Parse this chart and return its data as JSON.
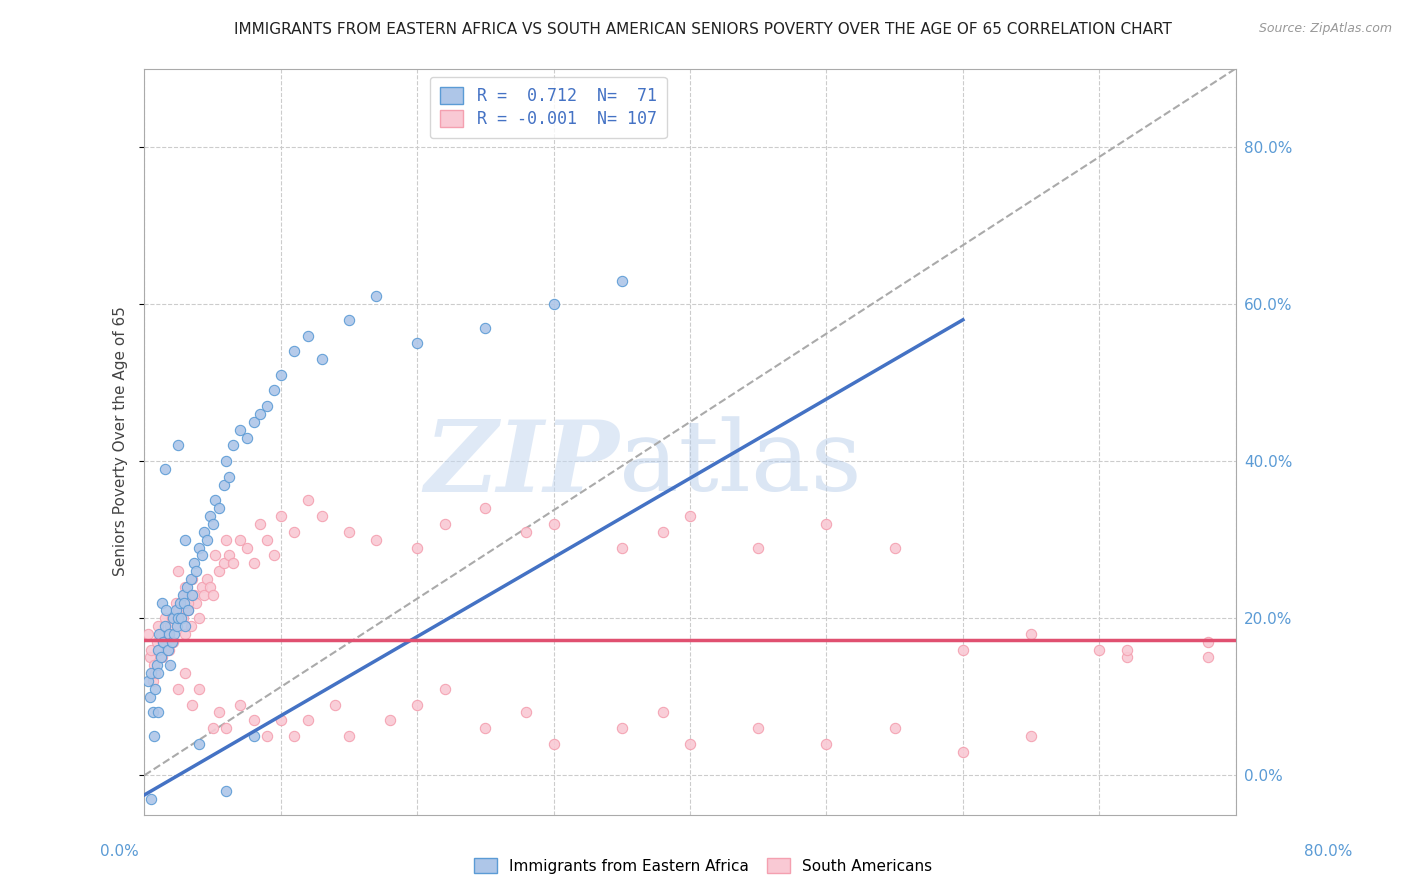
{
  "title": "IMMIGRANTS FROM EASTERN AFRICA VS SOUTH AMERICAN SENIORS POVERTY OVER THE AGE OF 65 CORRELATION CHART",
  "source": "Source: ZipAtlas.com",
  "ylabel": "Seniors Poverty Over the Age of 65",
  "ylabel_right_vals": [
    0.8,
    0.6,
    0.4,
    0.2,
    0.0
  ],
  "xlim": [
    0.0,
    0.8
  ],
  "ylim": [
    -0.05,
    0.9
  ],
  "background_color": "#ffffff",
  "grid_color": "#cccccc",
  "watermark_zip": "ZIP",
  "watermark_atlas": "atlas",
  "blue_color": "#5b9bd5",
  "blue_fill": "#aec6e8",
  "pink_color": "#f4a0b0",
  "pink_fill": "#f9c9d4",
  "trend_blue_color": "#4472c4",
  "trend_pink_color": "#e05070",
  "trend_dashed_color": "#aaaaaa",
  "blue_trend_x0": 0.0,
  "blue_trend_y0": -0.025,
  "blue_trend_x1": 0.6,
  "blue_trend_y1": 0.58,
  "pink_trend_x0": 0.0,
  "pink_trend_x1": 0.8,
  "pink_trend_y0": 0.172,
  "pink_trend_y1": 0.172,
  "dashed_trend_x0": 0.0,
  "dashed_trend_x1": 0.8,
  "dashed_trend_y0": 0.0,
  "dashed_trend_y1": 0.9,
  "blue_points_x": [
    0.003,
    0.004,
    0.005,
    0.006,
    0.007,
    0.008,
    0.009,
    0.01,
    0.01,
    0.011,
    0.012,
    0.013,
    0.014,
    0.015,
    0.016,
    0.017,
    0.018,
    0.019,
    0.02,
    0.021,
    0.022,
    0.023,
    0.024,
    0.025,
    0.026,
    0.027,
    0.028,
    0.029,
    0.03,
    0.031,
    0.032,
    0.034,
    0.035,
    0.036,
    0.038,
    0.04,
    0.042,
    0.044,
    0.046,
    0.048,
    0.05,
    0.052,
    0.055,
    0.058,
    0.06,
    0.062,
    0.065,
    0.07,
    0.075,
    0.08,
    0.085,
    0.09,
    0.095,
    0.1,
    0.11,
    0.12,
    0.13,
    0.15,
    0.17,
    0.2,
    0.25,
    0.3,
    0.35,
    0.04,
    0.06,
    0.08,
    0.03,
    0.025,
    0.015,
    0.01,
    0.005
  ],
  "blue_points_y": [
    0.12,
    0.1,
    0.13,
    0.08,
    0.05,
    0.11,
    0.14,
    0.16,
    0.13,
    0.18,
    0.15,
    0.22,
    0.17,
    0.19,
    0.21,
    0.16,
    0.18,
    0.14,
    0.17,
    0.2,
    0.18,
    0.21,
    0.19,
    0.2,
    0.22,
    0.2,
    0.23,
    0.22,
    0.19,
    0.24,
    0.21,
    0.25,
    0.23,
    0.27,
    0.26,
    0.29,
    0.28,
    0.31,
    0.3,
    0.33,
    0.32,
    0.35,
    0.34,
    0.37,
    0.4,
    0.38,
    0.42,
    0.44,
    0.43,
    0.45,
    0.46,
    0.47,
    0.49,
    0.51,
    0.54,
    0.56,
    0.53,
    0.58,
    0.61,
    0.55,
    0.57,
    0.6,
    0.63,
    0.04,
    -0.02,
    0.05,
    0.3,
    0.42,
    0.39,
    0.08,
    -0.03
  ],
  "pink_points_x": [
    0.003,
    0.004,
    0.005,
    0.006,
    0.007,
    0.008,
    0.009,
    0.01,
    0.011,
    0.012,
    0.013,
    0.014,
    0.015,
    0.016,
    0.017,
    0.018,
    0.019,
    0.02,
    0.021,
    0.022,
    0.023,
    0.024,
    0.025,
    0.026,
    0.027,
    0.028,
    0.029,
    0.03,
    0.031,
    0.032,
    0.034,
    0.035,
    0.036,
    0.038,
    0.04,
    0.042,
    0.044,
    0.046,
    0.048,
    0.05,
    0.052,
    0.055,
    0.058,
    0.06,
    0.062,
    0.065,
    0.07,
    0.075,
    0.08,
    0.085,
    0.09,
    0.095,
    0.1,
    0.11,
    0.12,
    0.13,
    0.15,
    0.17,
    0.2,
    0.22,
    0.25,
    0.28,
    0.3,
    0.35,
    0.38,
    0.4,
    0.45,
    0.5,
    0.55,
    0.6,
    0.65,
    0.7,
    0.72,
    0.78,
    0.025,
    0.03,
    0.035,
    0.04,
    0.05,
    0.055,
    0.06,
    0.07,
    0.08,
    0.09,
    0.1,
    0.11,
    0.12,
    0.14,
    0.15,
    0.18,
    0.2,
    0.22,
    0.25,
    0.28,
    0.3,
    0.35,
    0.38,
    0.4,
    0.45,
    0.5,
    0.55,
    0.6,
    0.65,
    0.72,
    0.78,
    0.025,
    0.03,
    0.032
  ],
  "pink_points_y": [
    0.18,
    0.15,
    0.16,
    0.12,
    0.14,
    0.13,
    0.17,
    0.19,
    0.16,
    0.18,
    0.15,
    0.17,
    0.2,
    0.16,
    0.18,
    0.16,
    0.19,
    0.2,
    0.17,
    0.19,
    0.22,
    0.2,
    0.21,
    0.2,
    0.22,
    0.2,
    0.23,
    0.18,
    0.22,
    0.21,
    0.19,
    0.25,
    0.23,
    0.22,
    0.2,
    0.24,
    0.23,
    0.25,
    0.24,
    0.23,
    0.28,
    0.26,
    0.27,
    0.3,
    0.28,
    0.27,
    0.3,
    0.29,
    0.27,
    0.32,
    0.3,
    0.28,
    0.33,
    0.31,
    0.35,
    0.33,
    0.31,
    0.3,
    0.29,
    0.32,
    0.34,
    0.31,
    0.32,
    0.29,
    0.31,
    0.33,
    0.29,
    0.32,
    0.29,
    0.16,
    0.18,
    0.16,
    0.15,
    0.17,
    0.11,
    0.13,
    0.09,
    0.11,
    0.06,
    0.08,
    0.06,
    0.09,
    0.07,
    0.05,
    0.07,
    0.05,
    0.07,
    0.09,
    0.05,
    0.07,
    0.09,
    0.11,
    0.06,
    0.08,
    0.04,
    0.06,
    0.08,
    0.04,
    0.06,
    0.04,
    0.06,
    0.03,
    0.05,
    0.16,
    0.15,
    0.26,
    0.24,
    0.22
  ]
}
